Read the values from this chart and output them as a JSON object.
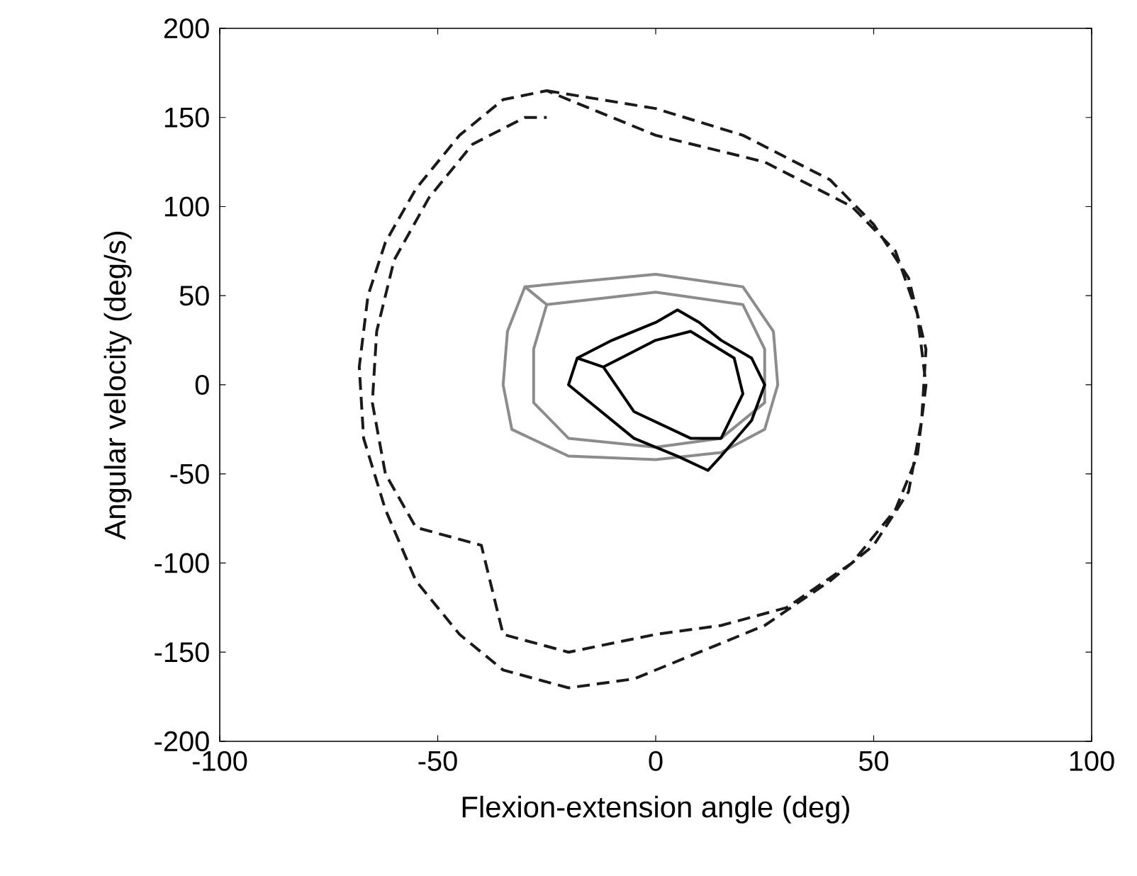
{
  "chart_data": {
    "type": "line",
    "xlabel": "Flexion-extension angle (deg)",
    "ylabel": "Angular velocity (deg/s)",
    "xlim": [
      -100,
      100
    ],
    "ylim": [
      -200,
      200
    ],
    "xticks": [
      -100,
      -50,
      0,
      50,
      100
    ],
    "yticks": [
      -200,
      -150,
      -100,
      -50,
      0,
      50,
      100,
      150,
      200
    ],
    "grid": false,
    "series": [
      {
        "color": "#1a1a1a",
        "line_style": "dashed",
        "x": [
          -25,
          0,
          20,
          40,
          50,
          58,
          62,
          61,
          58,
          50,
          40,
          25,
          10,
          -5,
          -20,
          -35,
          -45,
          -55,
          -62,
          -67,
          -68,
          -66,
          -62,
          -55,
          -45,
          -35,
          -25,
          0,
          25,
          45,
          55,
          60,
          62,
          60,
          55,
          45,
          30,
          15,
          0,
          -20,
          -35,
          -40,
          -55,
          -62,
          -65,
          -64,
          -60,
          -52,
          -42,
          -30,
          -25
        ],
        "values": [
          165,
          155,
          140,
          115,
          90,
          60,
          20,
          -20,
          -60,
          -90,
          -110,
          -135,
          -150,
          -165,
          -170,
          -160,
          -140,
          -110,
          -70,
          -30,
          10,
          50,
          80,
          110,
          140,
          160,
          165,
          140,
          125,
          100,
          75,
          40,
          0,
          -40,
          -70,
          -100,
          -125,
          -135,
          -140,
          -150,
          -140,
          -90,
          -80,
          -50,
          -10,
          30,
          70,
          105,
          135,
          150,
          150
        ]
      },
      {
        "color": "#8c8c8c",
        "line_style": "solid",
        "x": [
          -30,
          0,
          20,
          27,
          28,
          25,
          15,
          0,
          -20,
          -33,
          -35,
          -34,
          -30,
          -25,
          0,
          20,
          25,
          25,
          15,
          0,
          -20,
          -28,
          -28,
          -25
        ],
        "values": [
          55,
          62,
          55,
          30,
          0,
          -25,
          -38,
          -42,
          -40,
          -25,
          0,
          30,
          55,
          45,
          52,
          45,
          20,
          -10,
          -30,
          -35,
          -30,
          -10,
          20,
          45
        ]
      },
      {
        "color": "#000000",
        "line_style": "solid",
        "x": [
          -18,
          -10,
          0,
          5,
          10,
          15,
          22,
          25,
          22,
          15,
          12,
          5,
          -5,
          -15,
          -20,
          -18,
          -12,
          0,
          8,
          18,
          20,
          15,
          8,
          -5,
          -12
        ],
        "values": [
          15,
          25,
          35,
          42,
          35,
          25,
          15,
          0,
          -20,
          -40,
          -48,
          -40,
          -30,
          -10,
          0,
          15,
          10,
          25,
          30,
          15,
          -5,
          -30,
          -30,
          -15,
          10
        ]
      }
    ]
  }
}
